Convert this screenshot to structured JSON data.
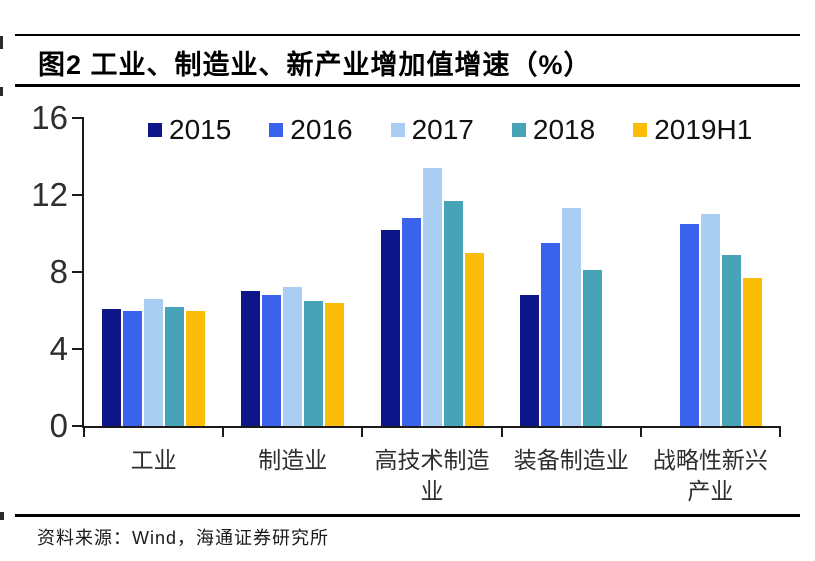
{
  "figure": {
    "title": "图2  工业、制造业、新产业增加值增速（%）",
    "source": "资料来源：Wind，海通证券研究所"
  },
  "chart_data": {
    "type": "bar",
    "title": "工业、制造业、新产业增加值增速（%）",
    "categories": [
      "工业",
      "制造业",
      "高技术制造业",
      "装备制造业",
      "战略性新兴产业"
    ],
    "series": [
      {
        "name": "2015",
        "color": "#0D1689",
        "values": [
          6.1,
          7.0,
          10.2,
          6.8,
          null
        ]
      },
      {
        "name": "2016",
        "color": "#3A62EC",
        "values": [
          6.0,
          6.8,
          10.8,
          9.5,
          10.5
        ]
      },
      {
        "name": "2017",
        "color": "#A9CEF2",
        "values": [
          6.6,
          7.2,
          13.4,
          11.3,
          11.0
        ]
      },
      {
        "name": "2018",
        "color": "#47A3B8",
        "values": [
          6.2,
          6.5,
          11.7,
          8.1,
          8.9
        ]
      },
      {
        "name": "2019H1",
        "color": "#FBBD08",
        "values": [
          6.0,
          6.4,
          9.0,
          null,
          7.7
        ]
      }
    ],
    "xlabel": "",
    "ylabel": "",
    "ylim": [
      0,
      16
    ],
    "yticks": [
      0,
      4,
      8,
      12,
      16
    ],
    "grid": false,
    "legend_position": "top"
  }
}
